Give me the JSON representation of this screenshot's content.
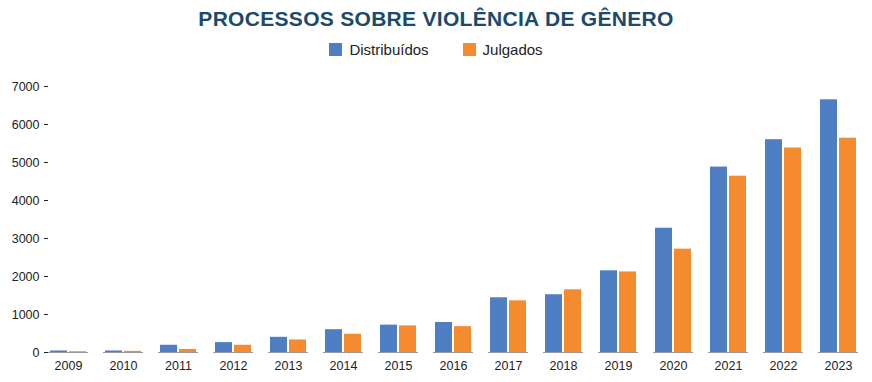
{
  "chart_data": {
    "type": "bar",
    "title": "PROCESSOS SOBRE VIOLÊNCIA DE GÊNERO",
    "categories": [
      "2009",
      "2010",
      "2011",
      "2012",
      "2013",
      "2014",
      "2015",
      "2016",
      "2017",
      "2018",
      "2019",
      "2020",
      "2021",
      "2022",
      "2023"
    ],
    "series": [
      {
        "name": "Distribuídos",
        "color": "#4f7ec2",
        "values": [
          40,
          40,
          190,
          260,
          400,
          600,
          720,
          790,
          1440,
          1520,
          2150,
          3270,
          4880,
          5600,
          6650
        ]
      },
      {
        "name": "Julgados",
        "color": "#f58a2e",
        "values": [
          20,
          30,
          80,
          190,
          330,
          480,
          700,
          680,
          1360,
          1650,
          2120,
          2720,
          4640,
          5380,
          5640
        ]
      }
    ],
    "ylim": [
      0,
      7000
    ],
    "yticks": [
      0,
      1000,
      2000,
      3000,
      4000,
      5000,
      6000,
      7000
    ],
    "grid": false,
    "legend": "top"
  }
}
